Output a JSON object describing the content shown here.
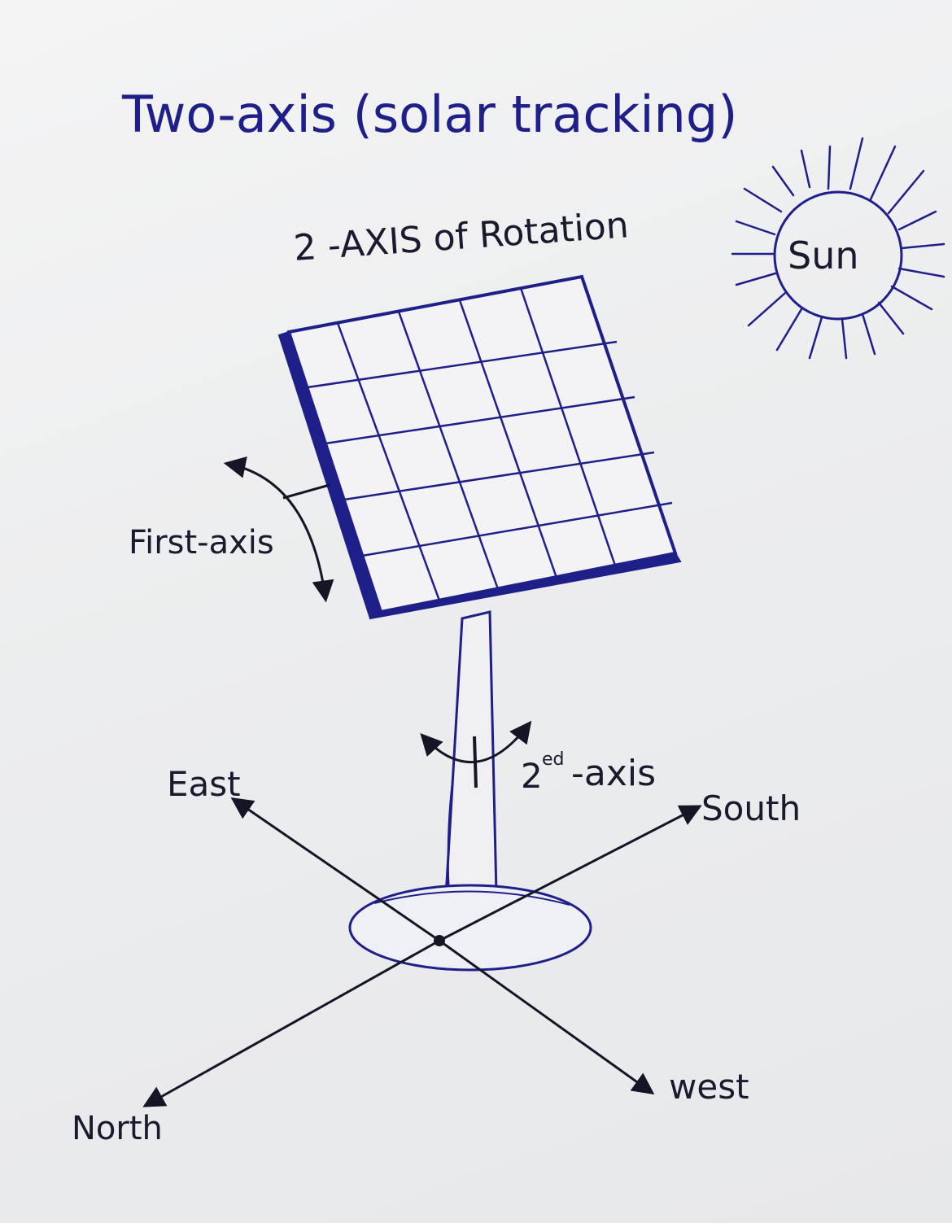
{
  "title": "Two-axis (solar tracking)",
  "subtitle": "2 -AXIS of Rotation",
  "sun_label": "Sun",
  "first_axis_label": "First-axis",
  "second_axis_sup": "2",
  "second_axis_sup_suffix": "ed",
  "second_axis_label": "-axis",
  "directions": {
    "east": "East",
    "south": "South",
    "west": "west",
    "north": "North"
  },
  "colors": {
    "ink_blue": "#1f1f8a",
    "ink_black": "#1a1a2e",
    "paper": "#eeeff0"
  }
}
